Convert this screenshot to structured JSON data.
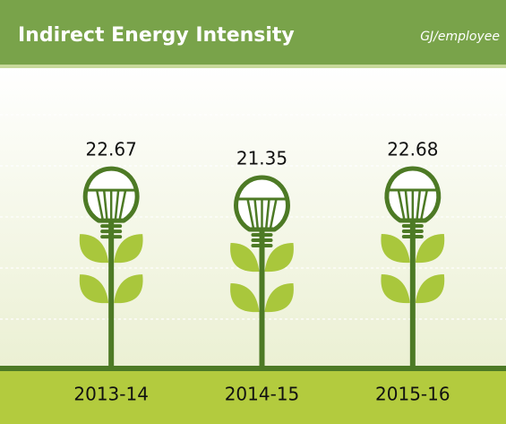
{
  "chart_data": {
    "type": "bar",
    "title": "Indirect Energy Intensity",
    "unit_label": "GJ/employee",
    "categories": [
      "2013-14",
      "2014-15",
      "2015-16"
    ],
    "values": [
      22.67,
      21.35,
      22.68
    ],
    "color": "#4d7a25",
    "leaf_color": "#a9c73c"
  }
}
